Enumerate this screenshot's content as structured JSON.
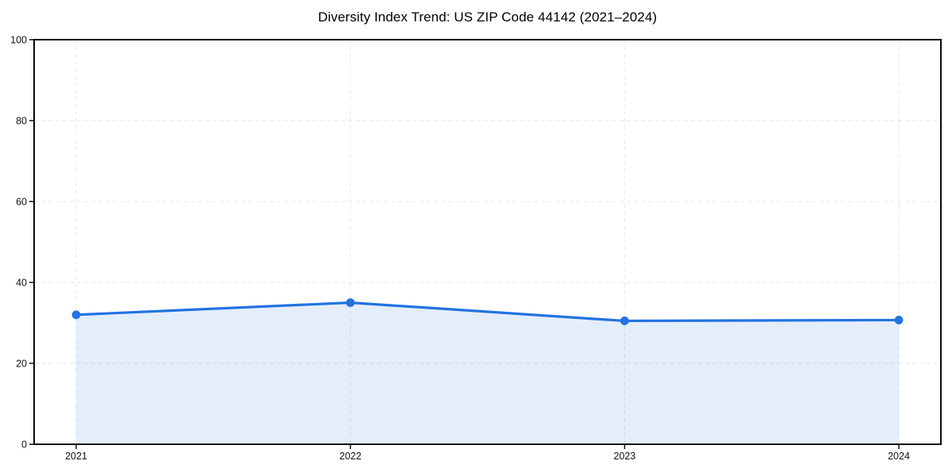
{
  "page": {
    "background": "#ffffff"
  },
  "chart_data": {
    "type": "line",
    "title": "Diversity Index Trend: US ZIP Code 44142 (2021–2024)",
    "x": [
      2021,
      2022,
      2023,
      2024
    ],
    "xticks": [
      "2021",
      "2022",
      "2023",
      "2024"
    ],
    "series": [
      {
        "name": "Diversity Index",
        "values": [
          32,
          35,
          30.5,
          30.7
        ]
      }
    ],
    "xlabel": "",
    "ylabel": "",
    "ylim": [
      0,
      100
    ],
    "yticks": [
      0,
      20,
      40,
      60,
      80,
      100
    ],
    "grid": true,
    "grid_style": "dashed",
    "legend": "none",
    "marker": "circle",
    "area_fill": true,
    "colors": {
      "line": "#2272e2",
      "area_fill": "rgba(34,114,226,0.12)",
      "grid": "#e6e6e6",
      "spine": "#0a0a0a",
      "tick_label": "#111111",
      "title": "#000000",
      "background": "#ffffff"
    }
  }
}
